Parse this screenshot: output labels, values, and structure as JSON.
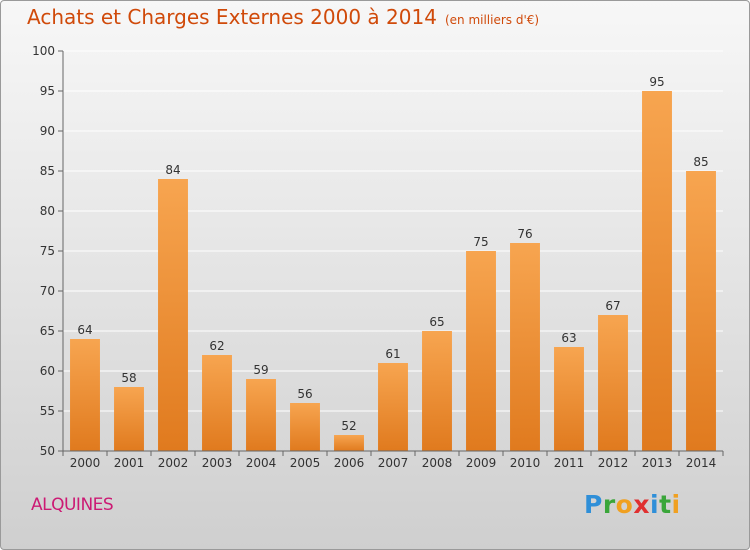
{
  "header": {
    "title": "Achats et Charges Externes 2000 à 2014",
    "subtitle": "(en milliers d'€)"
  },
  "footer": {
    "place": "ALQUINES",
    "brand": "Proxiti",
    "brand_letters": [
      {
        "ch": "P",
        "color": "#2f8fd8"
      },
      {
        "ch": "r",
        "color": "#3aa63a"
      },
      {
        "ch": "o",
        "color": "#f0a020"
      },
      {
        "ch": "x",
        "color": "#e03030"
      },
      {
        "ch": "i",
        "color": "#2f8fd8"
      },
      {
        "ch": "t",
        "color": "#3aa63a"
      },
      {
        "ch": "i",
        "color": "#f0a020"
      }
    ]
  },
  "colors": {
    "bar_top": "#f7a550",
    "bar_bottom": "#e07a1e",
    "title": "#d04a0a",
    "place": "#cc1a74",
    "grid": "#ffffff"
  },
  "chart_data": {
    "type": "bar",
    "categories": [
      "2000",
      "2001",
      "2002",
      "2003",
      "2004",
      "2005",
      "2006",
      "2007",
      "2008",
      "2009",
      "2010",
      "2011",
      "2012",
      "2013",
      "2014"
    ],
    "values": [
      64,
      58,
      84,
      62,
      59,
      56,
      52,
      61,
      65,
      75,
      76,
      63,
      67,
      95,
      85
    ],
    "title": "Achats et Charges Externes 2000 à 2014",
    "subtitle": "(en milliers d'€)",
    "xlabel": "",
    "ylabel": "",
    "ylim": [
      50,
      100
    ],
    "yticks": [
      50,
      55,
      60,
      65,
      70,
      75,
      80,
      85,
      90,
      95,
      100
    ],
    "grid": true,
    "data_labels": true
  }
}
